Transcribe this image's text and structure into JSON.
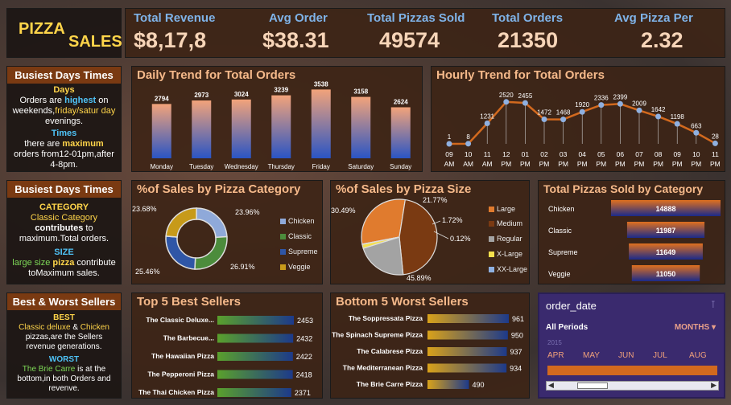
{
  "title": {
    "line1": "PIZZA",
    "line2": "SALES"
  },
  "kpis": [
    {
      "label": "Total Revenue",
      "value": "$8,17,8"
    },
    {
      "label": "Avg Order",
      "value": "$38.31"
    },
    {
      "label": "Total Pizzas Sold",
      "value": "49574"
    },
    {
      "label": "Total Orders",
      "value": "21350"
    },
    {
      "label": "Avg Pizza Per",
      "value": "2.32"
    }
  ],
  "side1": {
    "head": "Busiest Days Times",
    "days_h": "Days",
    "d1": "Orders are ",
    "d2": "highest",
    "d3": " on weekends,",
    "d4": "friday/satur day",
    "d5": " evenings.",
    "times_h": "Times",
    "t1": "there are ",
    "t2": "maximum",
    "t3": " orders from12-01pm,after 4-8pm."
  },
  "side2": {
    "head": "Busiest Days  Times",
    "cat_h": "CATEGORY",
    "c1": "Classic Category",
    "c2": " contributes",
    "c3": " to maximum.Total orders.",
    "size_h": "SIZE",
    "s1": "large size ",
    "s2": "pizza",
    "s3": " contribute toMaximum sales."
  },
  "side3": {
    "head": "Best & Worst Sellers",
    "best_h": "BEST",
    "b1": "Classic deluxe",
    "b2": " & ",
    "b3": "Chicken",
    "b4": " pizzas,are the Sellers revenue generations.",
    "worst_h": "WORST",
    "w1": "The Brie Carre",
    "w2": " is at the bottom,in both Orders and revenve."
  },
  "chart_data": [
    {
      "type": "bar",
      "title": "Daily Trend for Total Orders",
      "categories": [
        "Monday",
        "Tuesday",
        "Wednesday",
        "Thursday",
        "Friday",
        "Saturday",
        "Sunday"
      ],
      "values": [
        2794,
        2973,
        3024,
        3239,
        3538,
        3158,
        2624
      ],
      "ylim": [
        0,
        4000
      ]
    },
    {
      "type": "line",
      "title": "Hourly Trend for Total Orders",
      "categories": [
        [
          "09",
          "AM"
        ],
        [
          "10",
          "AM"
        ],
        [
          "11",
          "AM"
        ],
        [
          "12",
          "PM"
        ],
        [
          "01",
          "PM"
        ],
        [
          "02",
          "PM"
        ],
        [
          "03",
          "PM"
        ],
        [
          "04",
          "PM"
        ],
        [
          "05",
          "PM"
        ],
        [
          "06",
          "PM"
        ],
        [
          "07",
          "PM"
        ],
        [
          "08",
          "PM"
        ],
        [
          "09",
          "PM"
        ],
        [
          "10",
          "PM"
        ],
        [
          "11",
          "PM"
        ]
      ],
      "values": [
        1,
        8,
        1231,
        2520,
        2455,
        1472,
        1468,
        1920,
        2336,
        2399,
        2009,
        1642,
        1198,
        663,
        28
      ],
      "ylim": [
        0,
        2800
      ]
    },
    {
      "type": "pie",
      "title": "%of Sales by Pizza Category",
      "labels": [
        "Chicken",
        "Classic",
        "Supreme",
        "Veggie"
      ],
      "values": [
        23.96,
        26.91,
        25.46,
        23.68
      ],
      "value_labels": [
        "23.96%",
        "26.91%",
        "25.46%",
        "23.68%"
      ],
      "colors": [
        "#8fa9d9",
        "#4c8c3c",
        "#2f56a6",
        "#c79a1a"
      ]
    },
    {
      "type": "pie",
      "title": "%of Sales by Pizza Size",
      "labels": [
        "Large",
        "Medium",
        "Regular",
        "X-Large",
        "XX-Large"
      ],
      "values": [
        30.49,
        45.89,
        21.77,
        1.72,
        0.12
      ],
      "value_labels": [
        "30.49%",
        "45.89%",
        "21.77%",
        "1.72%",
        "0.12%"
      ],
      "colors": [
        "#e07b2e",
        "#7a3a12",
        "#a3a3a3",
        "#f4e04d",
        "#8fb0e0"
      ]
    },
    {
      "type": "bar",
      "title": "Total Pizzas Sold by Category",
      "categories": [
        "Chicken",
        "Classic",
        "Supreme",
        "Veggie"
      ],
      "values": [
        14888,
        11987,
        11649,
        11050
      ]
    },
    {
      "type": "bar",
      "title": "Top 5 Best Sellers",
      "categories": [
        "The Classic Deluxe...",
        "The Barbecue...",
        "The Hawaiian Pizza",
        "The Pepperoni Pizza",
        "The Thai Chicken Pizza"
      ],
      "values": [
        2453,
        2432,
        2422,
        2418,
        2371
      ]
    },
    {
      "type": "bar",
      "title": "Bottom 5  Worst Sellers",
      "categories": [
        "The Soppressata Pizza",
        "The Spinach Supreme Pizza",
        "The Calabrese Pizza",
        "The Mediterranean Pizza",
        "The Brie Carre Pizza"
      ],
      "values": [
        961,
        950,
        937,
        934,
        490
      ]
    }
  ],
  "slicer": {
    "title": "order_date",
    "filter_icon": "filter-icon",
    "periods": "All Periods",
    "unit": "MONTHS",
    "year": "2015",
    "months": [
      "APR",
      "MAY",
      "JUN",
      "JUL",
      "AUG"
    ]
  }
}
